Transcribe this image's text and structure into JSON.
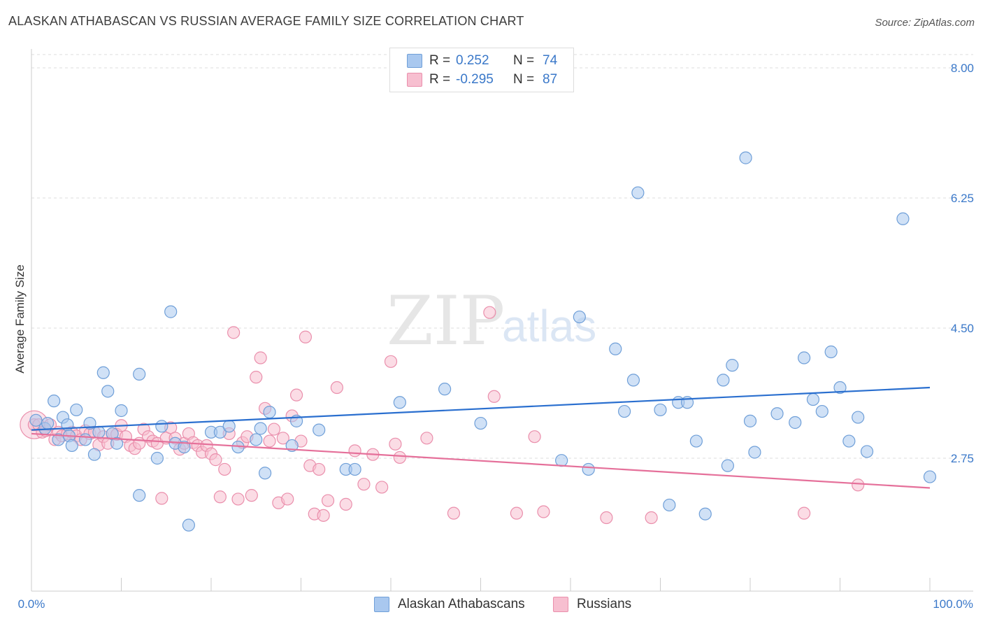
{
  "title": "ALASKAN ATHABASCAN VS RUSSIAN AVERAGE FAMILY SIZE CORRELATION CHART",
  "source": "Source: ZipAtlas.com",
  "watermark": {
    "zip": "ZIP",
    "atlas": "atlas"
  },
  "legend": {
    "rows": [
      {
        "r_label": "R =",
        "r_value": "0.252",
        "n_label": "N =",
        "n_value": "74"
      },
      {
        "r_label": "R =",
        "r_value": "-0.295",
        "n_label": "N =",
        "n_value": "87"
      }
    ]
  },
  "bottom_legend": [
    "Alaskan Athabascans",
    "Russians"
  ],
  "colors": {
    "blue_fill": "#a9c8ef",
    "blue_stroke": "#6f9fd8",
    "blue_line": "#2a6fcf",
    "pink_fill": "#f7bfd0",
    "pink_stroke": "#ea8fac",
    "pink_line": "#e5709a",
    "tick_text": "#3a78c9",
    "grid": "#dddddd"
  },
  "chart_data": {
    "type": "scatter",
    "title": "ALASKAN ATHABASCAN VS RUSSIAN AVERAGE FAMILY SIZE CORRELATION CHART",
    "xlabel": "",
    "ylabel": "Average Family Size",
    "xlim": [
      0,
      100
    ],
    "ylim": [
      1.5,
      8.5
    ],
    "x_tick_labels": [
      "0.0%",
      "100.0%"
    ],
    "y_ticks": [
      2.75,
      4.5,
      6.25,
      8.0
    ],
    "y_tick_labels": [
      "2.75",
      "4.50",
      "6.25",
      "8.00"
    ],
    "grid": true,
    "legend_position": "top-center",
    "series": [
      {
        "name": "Alaskan Athabascans",
        "color": "#a9c8ef",
        "r": 0.252,
        "n": 74,
        "trend": {
          "x0": 0,
          "y0": 3.13,
          "x1": 100,
          "y1": 3.7
        },
        "points": [
          [
            0.5,
            3.26
          ],
          [
            1.5,
            3.15
          ],
          [
            1.8,
            3.22
          ],
          [
            2.5,
            3.52
          ],
          [
            3,
            3.0
          ],
          [
            3.5,
            3.3
          ],
          [
            4,
            3.2
          ],
          [
            4.2,
            3.05
          ],
          [
            4.5,
            2.92
          ],
          [
            5,
            3.4
          ],
          [
            6,
            3.0
          ],
          [
            6.5,
            3.22
          ],
          [
            7,
            2.8
          ],
          [
            7.5,
            3.1
          ],
          [
            8,
            3.9
          ],
          [
            8.5,
            3.65
          ],
          [
            9,
            3.08
          ],
          [
            9.5,
            2.95
          ],
          [
            10,
            3.39
          ],
          [
            12,
            3.88
          ],
          [
            12,
            2.25
          ],
          [
            14,
            2.75
          ],
          [
            14.5,
            3.18
          ],
          [
            15.5,
            4.72
          ],
          [
            16,
            2.95
          ],
          [
            17,
            2.9
          ],
          [
            17.5,
            1.85
          ],
          [
            20,
            3.1
          ],
          [
            21,
            3.1
          ],
          [
            22,
            3.18
          ],
          [
            23,
            2.9
          ],
          [
            25,
            3.0
          ],
          [
            25.5,
            3.15
          ],
          [
            26,
            2.55
          ],
          [
            26.5,
            3.37
          ],
          [
            29,
            2.92
          ],
          [
            29.5,
            3.25
          ],
          [
            32,
            3.13
          ],
          [
            35,
            2.6
          ],
          [
            36,
            2.6
          ],
          [
            41,
            3.5
          ],
          [
            46,
            3.68
          ],
          [
            50,
            3.22
          ],
          [
            59,
            2.72
          ],
          [
            61,
            4.65
          ],
          [
            62,
            2.6
          ],
          [
            65,
            4.22
          ],
          [
            66,
            3.38
          ],
          [
            67,
            3.8
          ],
          [
            67.5,
            6.32
          ],
          [
            70,
            3.4
          ],
          [
            71,
            2.12
          ],
          [
            72,
            3.5
          ],
          [
            73,
            3.5
          ],
          [
            74,
            2.98
          ],
          [
            75,
            2.0
          ],
          [
            77,
            3.8
          ],
          [
            77.5,
            2.65
          ],
          [
            78,
            4.0
          ],
          [
            79.5,
            6.79
          ],
          [
            80,
            3.25
          ],
          [
            80.5,
            2.83
          ],
          [
            83,
            3.35
          ],
          [
            85,
            3.23
          ],
          [
            86,
            4.1
          ],
          [
            87,
            3.54
          ],
          [
            88,
            3.38
          ],
          [
            89,
            4.18
          ],
          [
            90,
            3.7
          ],
          [
            91,
            2.98
          ],
          [
            92,
            3.3
          ],
          [
            93,
            2.84
          ],
          [
            97,
            5.97
          ],
          [
            100,
            2.5
          ]
        ]
      },
      {
        "name": "Russians",
        "color": "#f7bfd0",
        "r": -0.295,
        "n": 87,
        "trend": {
          "x0": 0,
          "y0": 3.08,
          "x1": 100,
          "y1": 2.35
        },
        "points": [
          [
            0.3,
            3.2
          ],
          [
            0.8,
            3.2
          ],
          [
            1.2,
            3.1
          ],
          [
            1.6,
            3.12
          ],
          [
            2.1,
            3.2
          ],
          [
            2.6,
            3.0
          ],
          [
            3,
            3.1
          ],
          [
            3.4,
            3.05
          ],
          [
            4,
            3.08
          ],
          [
            4.5,
            3.1
          ],
          [
            5,
            3.05
          ],
          [
            5.5,
            3.0
          ],
          [
            6,
            3.12
          ],
          [
            6.5,
            3.08
          ],
          [
            7,
            3.1
          ],
          [
            7.5,
            2.93
          ],
          [
            8,
            3.04
          ],
          [
            8.5,
            2.95
          ],
          [
            9,
            3.08
          ],
          [
            9.5,
            3.07
          ],
          [
            10,
            3.19
          ],
          [
            10.5,
            3.04
          ],
          [
            11,
            2.92
          ],
          [
            11.5,
            2.88
          ],
          [
            12,
            2.95
          ],
          [
            12.5,
            3.14
          ],
          [
            13,
            3.04
          ],
          [
            13.5,
            2.98
          ],
          [
            14,
            2.95
          ],
          [
            14.5,
            2.21
          ],
          [
            15,
            3.02
          ],
          [
            15.5,
            3.16
          ],
          [
            16,
            3.02
          ],
          [
            16.5,
            2.87
          ],
          [
            17,
            2.95
          ],
          [
            17.5,
            3.08
          ],
          [
            18,
            2.96
          ],
          [
            18.5,
            2.92
          ],
          [
            19,
            2.83
          ],
          [
            19.5,
            2.92
          ],
          [
            20,
            2.81
          ],
          [
            20.5,
            2.73
          ],
          [
            21,
            2.23
          ],
          [
            21.5,
            2.6
          ],
          [
            22,
            3.08
          ],
          [
            22.5,
            4.44
          ],
          [
            23,
            2.2
          ],
          [
            23.5,
            2.96
          ],
          [
            24,
            3.04
          ],
          [
            24.5,
            2.25
          ],
          [
            25,
            3.84
          ],
          [
            25.5,
            4.1
          ],
          [
            26,
            3.42
          ],
          [
            26.5,
            2.98
          ],
          [
            27,
            3.14
          ],
          [
            27.5,
            2.15
          ],
          [
            28,
            3.02
          ],
          [
            28.5,
            2.2
          ],
          [
            29,
            3.32
          ],
          [
            29.5,
            3.6
          ],
          [
            30,
            2.98
          ],
          [
            30.5,
            4.38
          ],
          [
            31,
            2.65
          ],
          [
            31.5,
            2.0
          ],
          [
            32,
            2.6
          ],
          [
            32.5,
            1.98
          ],
          [
            33,
            2.18
          ],
          [
            34,
            3.7
          ],
          [
            35,
            2.13
          ],
          [
            36,
            2.85
          ],
          [
            37,
            2.4
          ],
          [
            38,
            2.8
          ],
          [
            39,
            2.36
          ],
          [
            40,
            4.05
          ],
          [
            40.5,
            2.94
          ],
          [
            41,
            2.76
          ],
          [
            44,
            3.02
          ],
          [
            47,
            2.01
          ],
          [
            51,
            4.71
          ],
          [
            51.5,
            3.58
          ],
          [
            54,
            2.01
          ],
          [
            56,
            3.04
          ],
          [
            57,
            2.03
          ],
          [
            64,
            1.95
          ],
          [
            69,
            1.95
          ],
          [
            86,
            2.01
          ],
          [
            92,
            2.39
          ]
        ]
      }
    ]
  }
}
